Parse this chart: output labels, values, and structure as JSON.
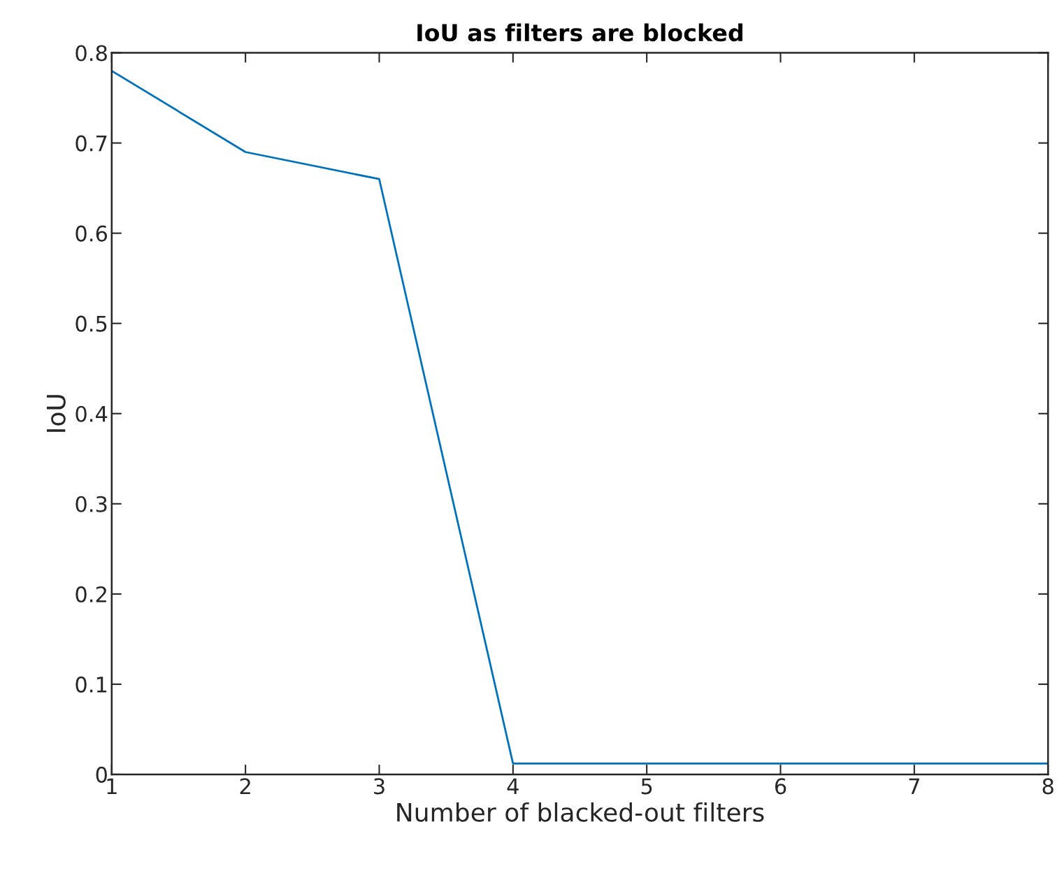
{
  "chart_data": {
    "type": "line",
    "title": "IoU as filters are blocked",
    "xlabel": "Number of blacked-out filters",
    "ylabel": "IoU",
    "x": [
      1,
      2,
      3,
      4,
      5,
      6,
      7,
      8
    ],
    "series": [
      {
        "color": "#0072bd",
        "values": [
          0.78,
          0.69,
          0.66,
          0.012,
          0.012,
          0.012,
          0.012,
          0.012
        ]
      }
    ],
    "xlim": [
      1,
      8
    ],
    "xticks": [
      1,
      2,
      3,
      4,
      5,
      6,
      7,
      8
    ],
    "ylim": [
      0,
      0.8
    ],
    "yticks": [
      0,
      0.1,
      0.2,
      0.3,
      0.4,
      0.5,
      0.6,
      0.7,
      0.8
    ],
    "grid": false,
    "legend": false,
    "marker": "none",
    "line_style": "solid"
  }
}
